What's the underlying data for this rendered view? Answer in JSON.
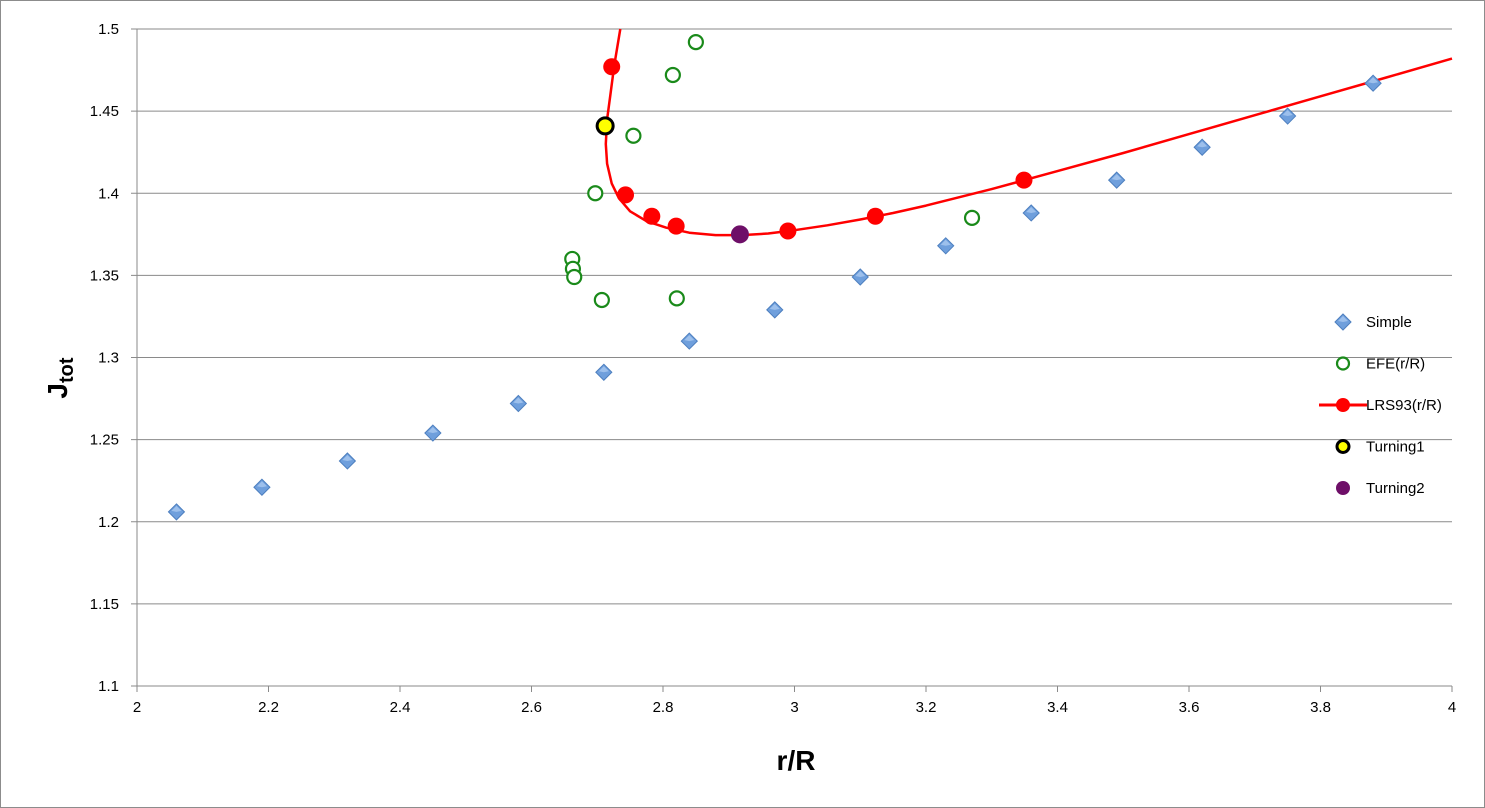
{
  "chart_data": {
    "type": "scatter",
    "title": "",
    "xlabel": "r/R",
    "ylabel_main": "J",
    "ylabel_sub": "tot",
    "xlim": [
      2,
      4
    ],
    "ylim": [
      1.1,
      1.5
    ],
    "x_ticks": [
      "2",
      "2.2",
      "2.4",
      "2.6",
      "2.8",
      "3",
      "3.2",
      "3.4",
      "3.6",
      "3.8",
      "4"
    ],
    "y_ticks": [
      "1.1",
      "1.15",
      "1.2",
      "1.25",
      "1.3",
      "1.35",
      "1.4",
      "1.45",
      "1.5"
    ],
    "grid": "horizontal",
    "legend_position": "right",
    "series": [
      {
        "name": "Simple",
        "marker": "diamond",
        "color": "#6f9fdc",
        "x": [
          2.06,
          2.19,
          2.32,
          2.45,
          2.58,
          2.71,
          2.84,
          2.97,
          3.1,
          3.23,
          3.36,
          3.49,
          3.62,
          3.75,
          3.88
        ],
        "y": [
          1.206,
          1.221,
          1.237,
          1.254,
          1.272,
          1.291,
          1.31,
          1.329,
          1.349,
          1.368,
          1.388,
          1.408,
          1.428,
          1.447,
          1.467
        ]
      },
      {
        "name": "EFE(r/R)",
        "marker": "open-circle",
        "color": "#1a8a1a",
        "x": [
          2.85,
          2.815,
          2.755,
          2.697,
          2.662,
          2.663,
          2.665,
          2.707,
          2.821,
          3.27
        ],
        "y": [
          1.492,
          1.472,
          1.435,
          1.4,
          1.36,
          1.354,
          1.349,
          1.335,
          1.336,
          1.385
        ]
      },
      {
        "name": "LRS93(r/R)",
        "marker": "filled-circle-line",
        "color": "#ff0000",
        "x": [
          2.722,
          2.743,
          2.783,
          2.82,
          2.99,
          3.123,
          3.349
        ],
        "y": [
          1.477,
          1.399,
          1.386,
          1.38,
          1.377,
          1.386,
          1.408
        ],
        "curve_x": [
          2.735,
          2.726,
          2.72,
          2.715,
          2.713,
          2.715,
          2.722,
          2.733,
          2.75,
          2.775,
          2.805,
          2.84,
          2.88,
          2.92,
          2.96,
          3.0,
          3.05,
          3.1,
          3.15,
          3.2,
          3.3,
          3.4,
          3.5,
          3.6,
          3.7,
          3.8,
          3.9,
          4.0
        ],
        "curve_y": [
          1.5,
          1.478,
          1.46,
          1.445,
          1.43,
          1.418,
          1.406,
          1.397,
          1.389,
          1.383,
          1.379,
          1.376,
          1.3745,
          1.3745,
          1.3755,
          1.3775,
          1.3805,
          1.384,
          1.388,
          1.3925,
          1.4025,
          1.4135,
          1.4245,
          1.436,
          1.4475,
          1.459,
          1.4705,
          1.482
        ]
      },
      {
        "name": "Turning1",
        "marker": "yellow-circle-black-edge",
        "color": "#ffff00",
        "x": [
          2.712
        ],
        "y": [
          1.441
        ]
      },
      {
        "name": "Turning2",
        "marker": "filled-circle",
        "color": "#6e0f68",
        "x": [
          2.917
        ],
        "y": [
          1.375
        ]
      }
    ]
  }
}
